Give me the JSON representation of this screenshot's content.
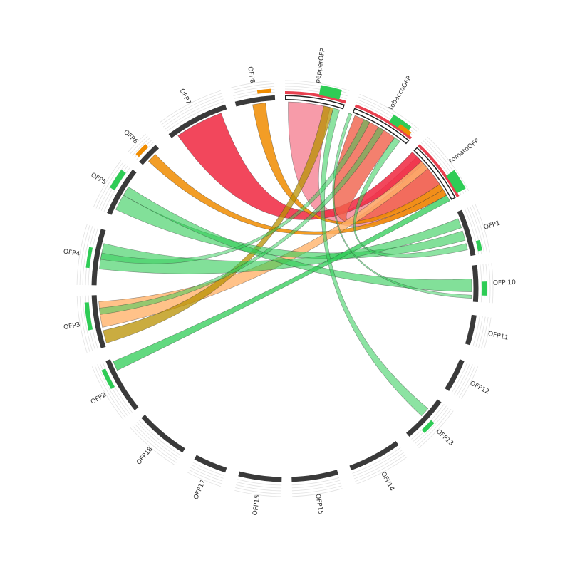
{
  "nodes": [
    {
      "label": "pepperOFP"
    },
    {
      "label": "tobaccoOFP"
    },
    {
      "label": "tomatoOFP"
    },
    {
      "label": "OFP1"
    },
    {
      "label": "OFP 10"
    },
    {
      "label": "OFP11"
    },
    {
      "label": "OFP12"
    },
    {
      "label": "OFP13"
    },
    {
      "label": "OFP14"
    },
    {
      "label": "OFP15"
    },
    {
      "label": "OFP15"
    },
    {
      "label": "OFP17"
    },
    {
      "label": "OFP18"
    },
    {
      "label": "OFP2"
    },
    {
      "label": "OFP3"
    },
    {
      "label": "OFP4"
    },
    {
      "label": "OFP5"
    },
    {
      "label": "OFP6"
    },
    {
      "label": "OFP7"
    },
    {
      "label": "OFP8"
    }
  ]
}
